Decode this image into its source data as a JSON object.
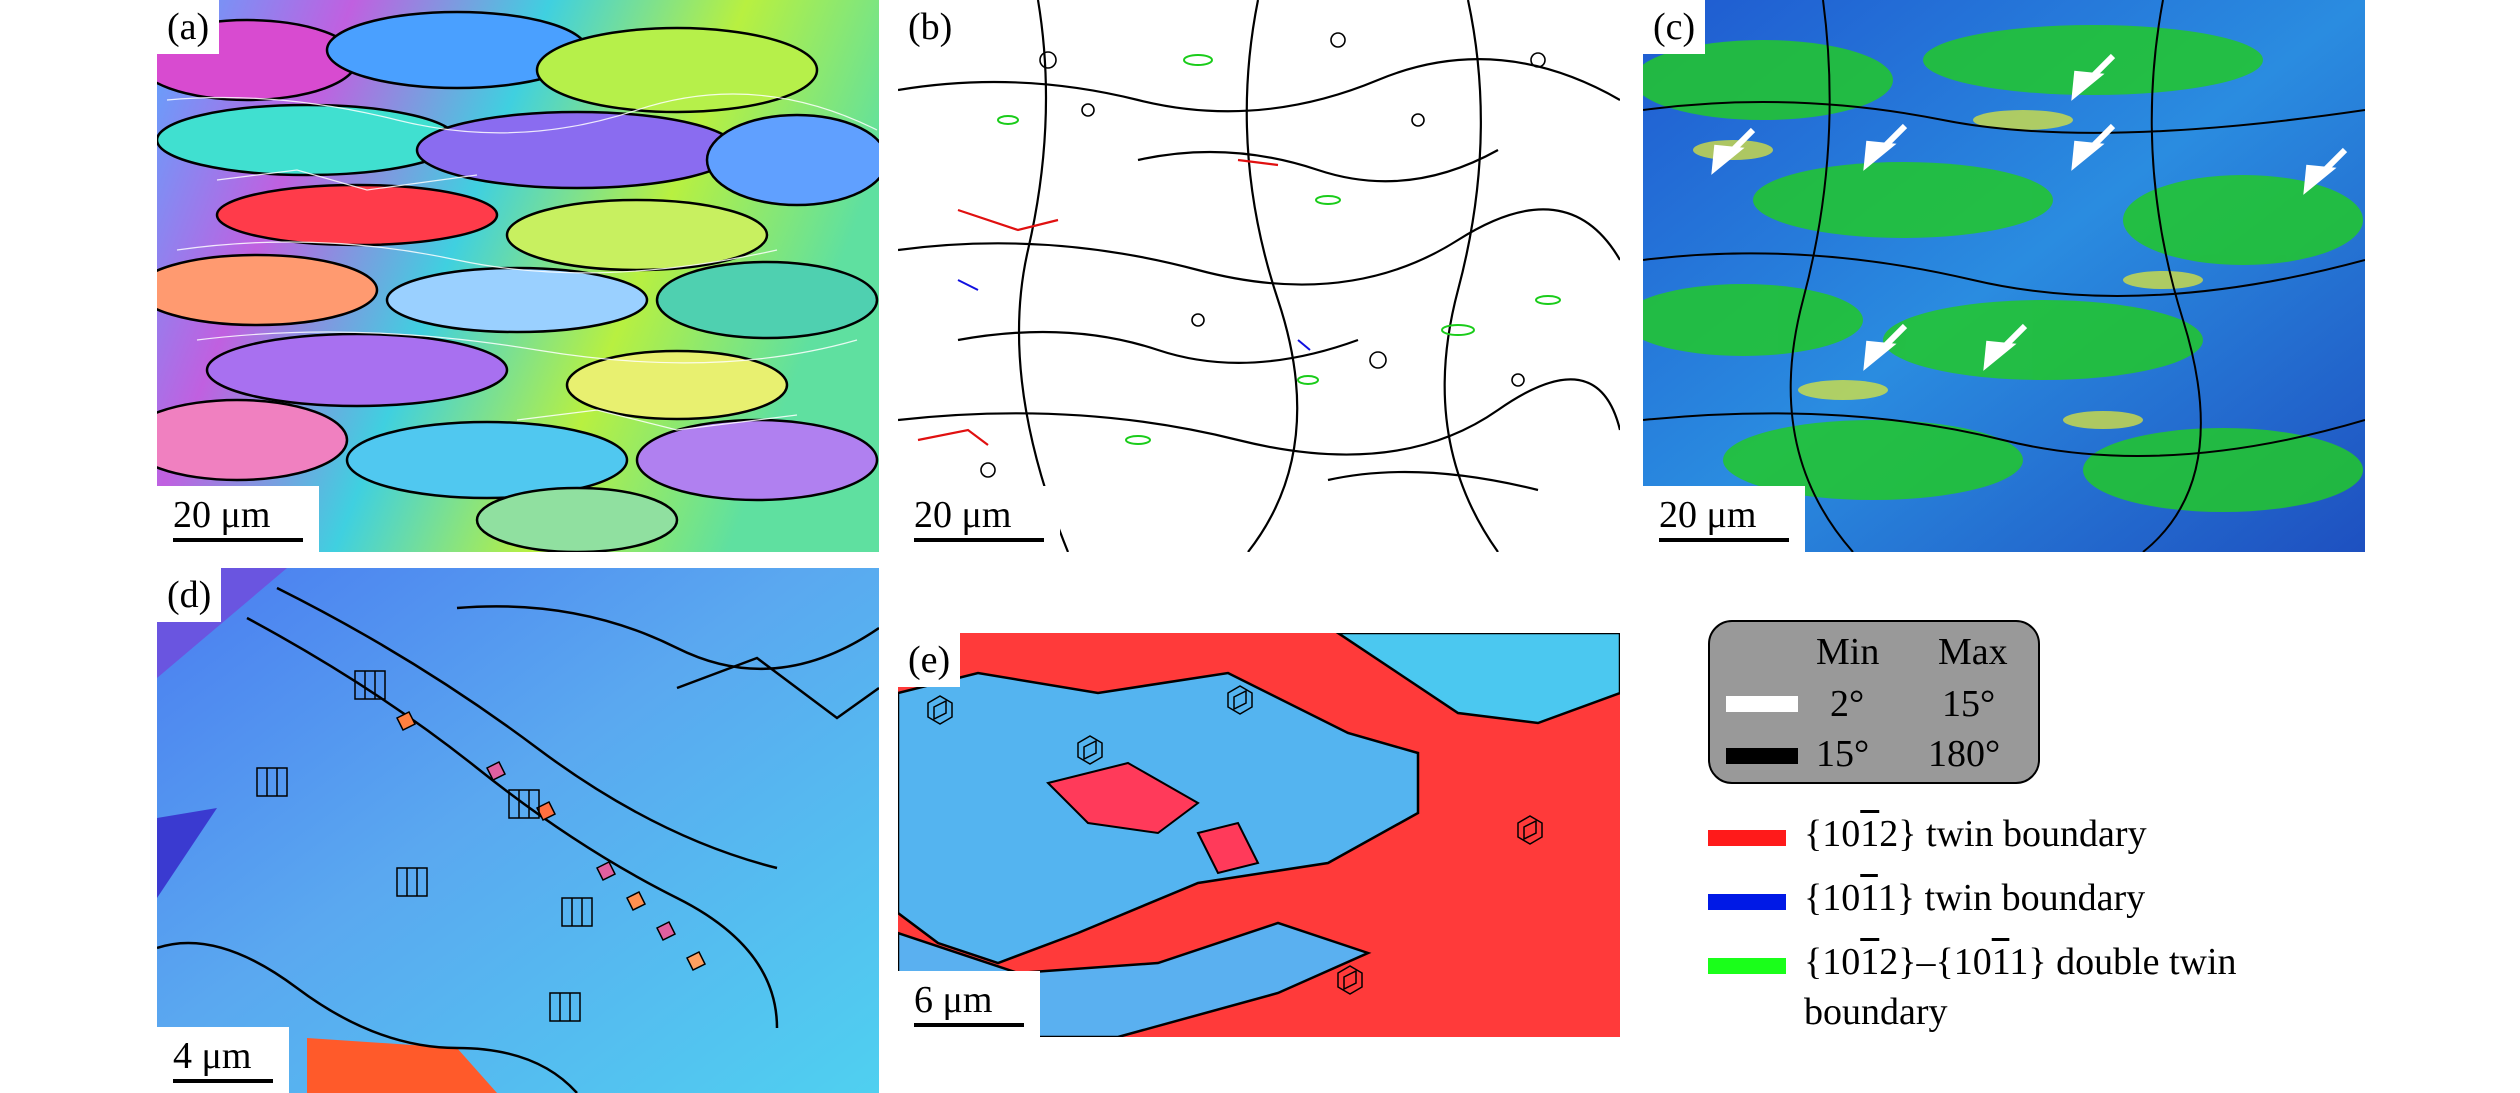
{
  "panels": [
    {
      "id": "a",
      "label": "(a)",
      "scale": "20 μm",
      "map": "ipf-map"
    },
    {
      "id": "b",
      "label": "(b)",
      "scale": "20 μm",
      "map": "boundary-map"
    },
    {
      "id": "c",
      "label": "(c)",
      "scale": "20 μm",
      "map": "kam-map"
    },
    {
      "id": "d",
      "label": "(d)",
      "scale": "4 μm",
      "map": "ipf-zoom-map"
    },
    {
      "id": "e",
      "label": "(e)",
      "scale": "6 μm",
      "map": "ipf-zoom-map"
    }
  ],
  "legend": {
    "header_min": "Min",
    "header_max": "Max",
    "rows": [
      {
        "color": "#ffffff",
        "min": "2°",
        "max": "15°"
      },
      {
        "color": "#000000",
        "min": "15°",
        "max": "180°"
      }
    ]
  },
  "twin_legend": [
    {
      "color": "#ff1a1a",
      "pre": "{10",
      "bar": "1",
      "post": "2} twin boundary"
    },
    {
      "color": "#0019e6",
      "pre": "{10",
      "bar": "1",
      "post": "1} twin boundary"
    },
    {
      "color": "#1aff1a",
      "pre": "{10",
      "bar": "1",
      "mid": "2}–{10",
      "bar2": "1",
      "post": "1} double twin",
      "cont": "boundary"
    }
  ]
}
